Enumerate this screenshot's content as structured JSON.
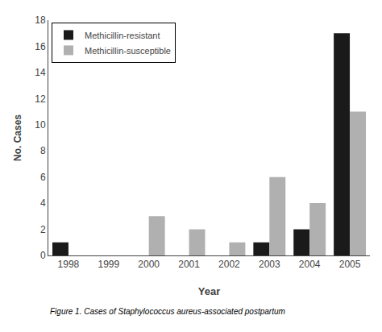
{
  "chart_data": {
    "type": "bar",
    "categories": [
      "1998",
      "1999",
      "2000",
      "2001",
      "2002",
      "2003",
      "2004",
      "2005"
    ],
    "series": [
      {
        "name": "Methicillin-resistant",
        "color": "#1a1a1a",
        "values": [
          1,
          0,
          0,
          0,
          0,
          1,
          2,
          17
        ]
      },
      {
        "name": "Methicillin-susceptible",
        "color": "#b0b0b0",
        "values": [
          0,
          0,
          3,
          2,
          1,
          6,
          4,
          11
        ]
      }
    ],
    "xlabel": "Year",
    "ylabel": "No. Cases",
    "ylim": [
      0,
      18
    ],
    "yticks": [
      0,
      2,
      4,
      6,
      8,
      10,
      12,
      14,
      16,
      18
    ],
    "annotations": [
      "Figure 1. Cases of Staphylococcus aureus-associated postpartum"
    ],
    "legend": "upper left",
    "grid": false
  }
}
